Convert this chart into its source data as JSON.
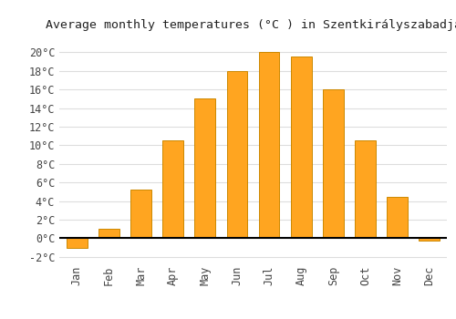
{
  "title": "Average monthly temperatures (°C ) in Szentkirályszabadja",
  "months": [
    "Jan",
    "Feb",
    "Mar",
    "Apr",
    "May",
    "Jun",
    "Jul",
    "Aug",
    "Sep",
    "Oct",
    "Nov",
    "Dec"
  ],
  "values": [
    -1.0,
    1.0,
    5.2,
    10.5,
    15.0,
    18.0,
    20.0,
    19.5,
    16.0,
    10.5,
    4.5,
    -0.2
  ],
  "bar_color_positive": "#FFA520",
  "bar_color_negative": "#FFA520",
  "bar_edge_color": "#CC8800",
  "ylim": [
    -2.5,
    21.5
  ],
  "yticks": [
    -2,
    0,
    2,
    4,
    6,
    8,
    10,
    12,
    14,
    16,
    18,
    20
  ],
  "background_color": "#ffffff",
  "grid_color": "#dddddd",
  "title_fontsize": 9.5,
  "tick_fontsize": 8.5,
  "bar_width": 0.65
}
